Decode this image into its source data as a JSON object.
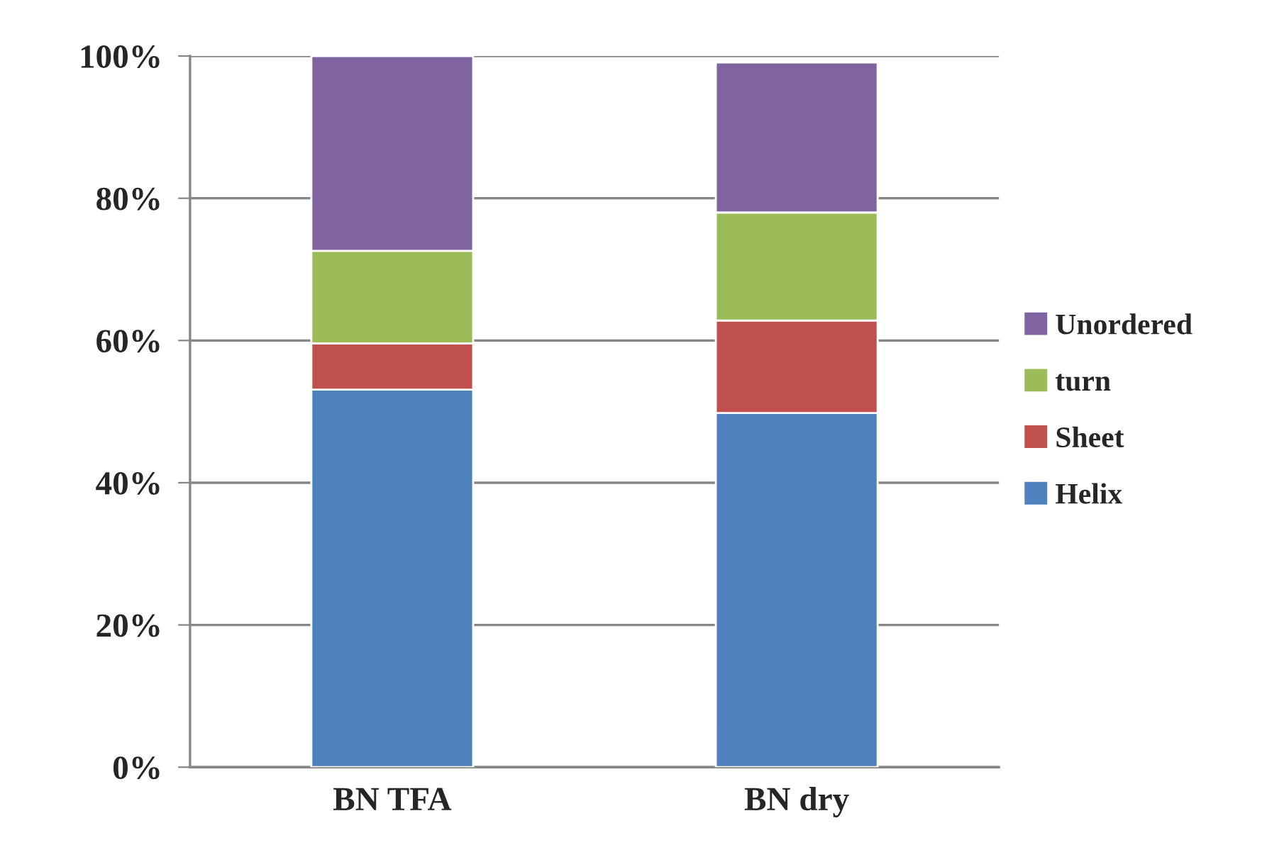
{
  "chart_data": {
    "type": "bar",
    "stacked": true,
    "categories": [
      "BN TFA",
      "BN dry"
    ],
    "series": [
      {
        "name": "Helix",
        "color": "#4f81bd",
        "values": [
          53.1,
          49.8
        ]
      },
      {
        "name": "Sheet",
        "color": "#c0504d",
        "values": [
          6.5,
          13.0
        ]
      },
      {
        "name": "turn",
        "color": "#9bbb59",
        "values": [
          13.0,
          15.2
        ]
      },
      {
        "name": "Unordered",
        "color": "#8064a2",
        "values": [
          27.4,
          21.1
        ]
      }
    ],
    "ylim": [
      0,
      100
    ],
    "yticks": [
      {
        "value": 0,
        "label": "0%"
      },
      {
        "value": 20,
        "label": "20%"
      },
      {
        "value": 40,
        "label": "40%"
      },
      {
        "value": 60,
        "label": "60%"
      },
      {
        "value": 80,
        "label": "80%"
      },
      {
        "value": 100,
        "label": "100%"
      }
    ],
    "grid": "y",
    "legend": "right"
  }
}
